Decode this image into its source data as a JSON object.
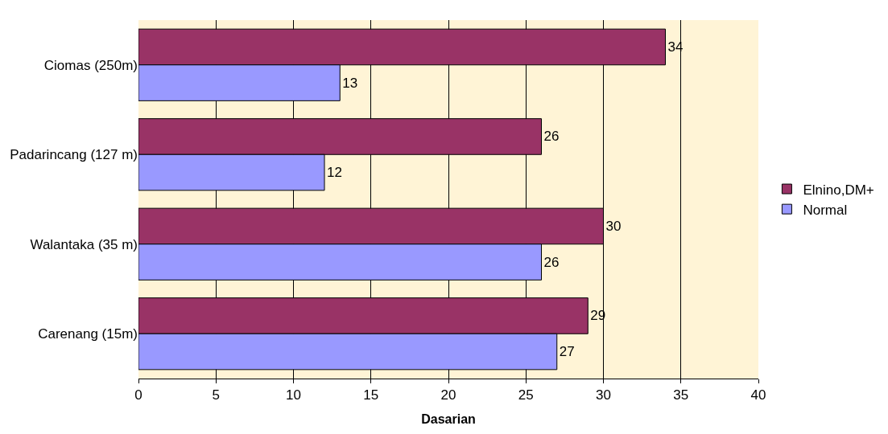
{
  "chart_data": {
    "type": "bar",
    "orientation": "horizontal",
    "xlabel": "Dasarian",
    "categories": [
      "Ciomas (250m)",
      "Padarincang (127 m)",
      "Walantaka (35 m)",
      "Carenang (15m)"
    ],
    "series": [
      {
        "name": "Elnino,DM+",
        "color": "#993366",
        "values": [
          34,
          26,
          30,
          29
        ]
      },
      {
        "name": "Normal",
        "color": "#9999ff",
        "values": [
          13,
          12,
          26,
          27
        ]
      }
    ],
    "xlim": [
      0,
      40
    ],
    "xticks": [
      0,
      5,
      10,
      15,
      20,
      25,
      30,
      35,
      40
    ],
    "grid": "x",
    "legend": "right",
    "data_labels": true
  }
}
